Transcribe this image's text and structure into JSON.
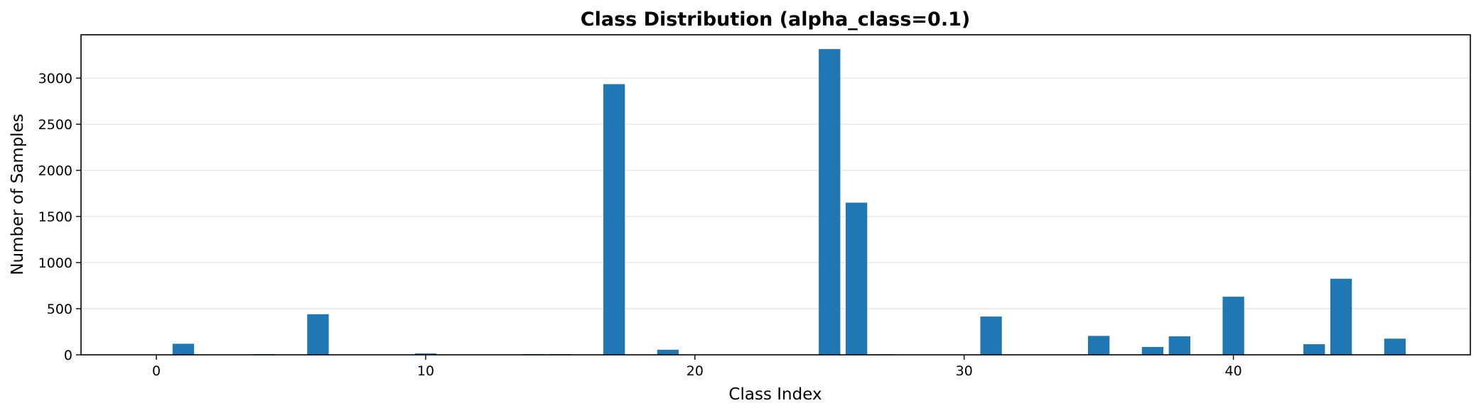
{
  "chart_data": {
    "type": "bar",
    "title": "Class Distribution (alpha_class=0.1)",
    "xlabel": "Class Index",
    "ylabel": "Number of Samples",
    "xlim": [
      -2.8,
      48.8
    ],
    "ylim": [
      0,
      3470
    ],
    "xticks": [
      0,
      10,
      20,
      30,
      40
    ],
    "yticks": [
      0,
      500,
      1000,
      1500,
      2000,
      2500,
      3000
    ],
    "grid": "y",
    "bar_color": "#1f77b4",
    "x": [
      1,
      4,
      6,
      10,
      14,
      15,
      17,
      19,
      25,
      26,
      27,
      31,
      35,
      37,
      38,
      40,
      43,
      44,
      46
    ],
    "values": [
      120,
      8,
      440,
      15,
      8,
      8,
      2935,
      55,
      3315,
      1650,
      6,
      415,
      205,
      85,
      200,
      630,
      115,
      825,
      175
    ]
  }
}
